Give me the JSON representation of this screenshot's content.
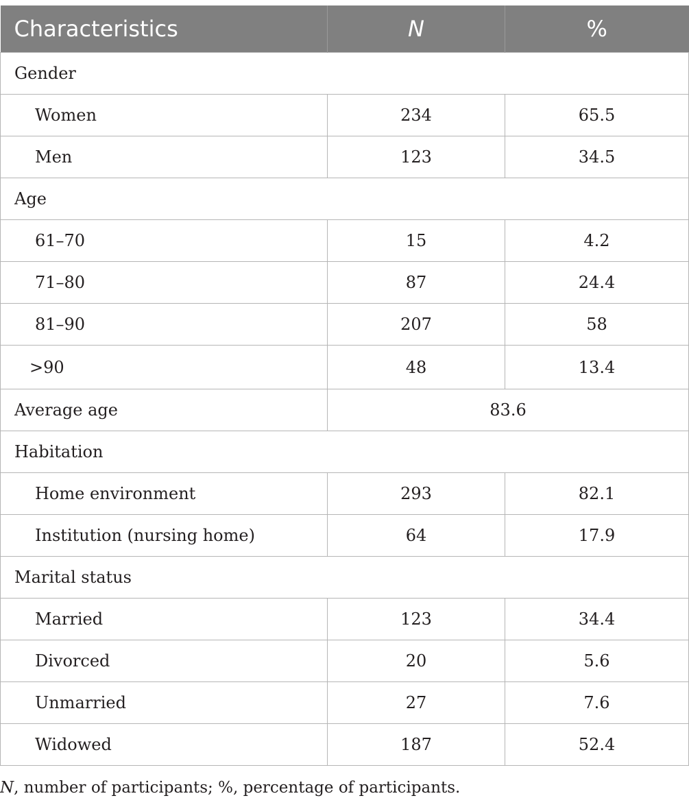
{
  "table": {
    "headers": [
      "Characteristics",
      "N",
      "%"
    ],
    "sections": [
      {
        "title": "Gender",
        "rows": [
          {
            "label": "Women",
            "n": "234",
            "pct": "65.5"
          },
          {
            "label": "Men",
            "n": "123",
            "pct": "34.5"
          }
        ]
      },
      {
        "title": "Age",
        "rows": [
          {
            "label": "61–70",
            "n": "15",
            "pct": "4.2"
          },
          {
            "label": "71–80",
            "n": "87",
            "pct": "24.4"
          },
          {
            "label": "81–90",
            "n": "207",
            "pct": "58"
          },
          {
            "label": ">90",
            "n": "48",
            "pct": "13.4"
          }
        ]
      }
    ],
    "average_age": {
      "label": "Average age",
      "value": "83.6"
    },
    "sections2": [
      {
        "title": "Habitation",
        "rows": [
          {
            "label": "Home environment",
            "n": "293",
            "pct": "82.1"
          },
          {
            "label": "Institution (nursing home)",
            "n": "64",
            "pct": "17.9"
          }
        ]
      },
      {
        "title": "Marital status",
        "rows": [
          {
            "label": "Married",
            "n": "123",
            "pct": "34.4"
          },
          {
            "label": "Divorced",
            "n": "20",
            "pct": "5.6"
          },
          {
            "label": "Unmarried",
            "n": "27",
            "pct": "7.6"
          },
          {
            "label": "Widowed",
            "n": "187",
            "pct": "52.4"
          }
        ]
      }
    ]
  },
  "footnote": {
    "n_symbol": "N",
    "text": ", number of participants; %, percentage of participants."
  }
}
